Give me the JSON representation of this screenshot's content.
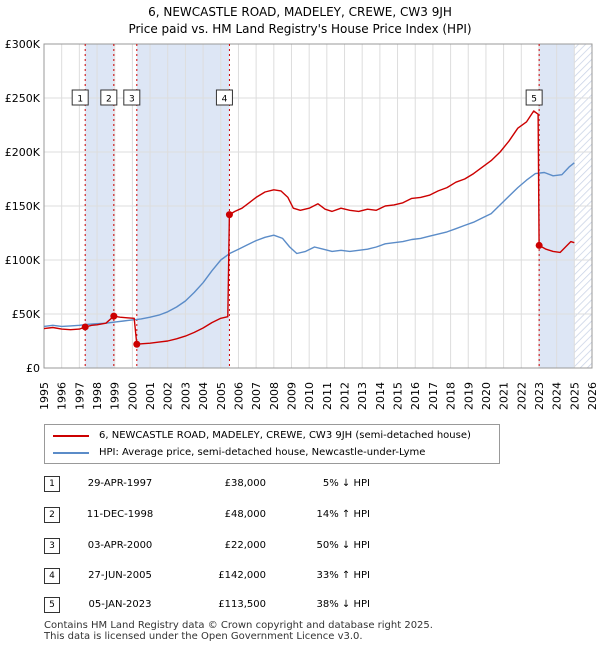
{
  "header": {
    "title": "6, NEWCASTLE ROAD, MADELEY, CREWE, CW3 9JH",
    "subtitle": "Price paid vs. HM Land Registry's House Price Index (HPI)"
  },
  "colors": {
    "price_line": "#cc0000",
    "hpi_line": "#5b8cc8",
    "shade": "#dde6f5",
    "grid": "#dddddd",
    "marker_vline": "#cc0000"
  },
  "legend": {
    "price_label": "6, NEWCASTLE ROAD, MADELEY, CREWE, CW3 9JH (semi-detached house)",
    "hpi_label": "HPI: Average price, semi-detached house, Newcastle-under-Lyme"
  },
  "transactions": [
    {
      "num": "1",
      "date": "29-APR-1997",
      "price": "£38,000",
      "hpi": "5% ↓ HPI"
    },
    {
      "num": "2",
      "date": "11-DEC-1998",
      "price": "£48,000",
      "hpi": "14% ↑ HPI"
    },
    {
      "num": "3",
      "date": "03-APR-2000",
      "price": "£22,000",
      "hpi": "50% ↓ HPI"
    },
    {
      "num": "4",
      "date": "27-JUN-2005",
      "price": "£142,000",
      "hpi": "33% ↑ HPI"
    },
    {
      "num": "5",
      "date": "05-JAN-2023",
      "price": "£113,500",
      "hpi": "38% ↓ HPI"
    }
  ],
  "footer": {
    "line1": "Contains HM Land Registry data © Crown copyright and database right 2025.",
    "line2": "This data is licensed under the Open Government Licence v3.0."
  },
  "chart_data": {
    "type": "line",
    "title": "6, NEWCASTLE ROAD, MADELEY, CREWE, CW3 9JH",
    "subtitle": "Price paid vs. HM Land Registry's House Price Index (HPI)",
    "xlim": [
      1995,
      2026
    ],
    "ylim": [
      0,
      300000
    ],
    "x_ticks": [
      "1995",
      "1996",
      "1997",
      "1998",
      "1999",
      "2000",
      "2001",
      "2002",
      "2003",
      "2004",
      "2005",
      "2006",
      "2007",
      "2008",
      "2009",
      "2010",
      "2011",
      "2012",
      "2013",
      "2014",
      "2015",
      "2016",
      "2017",
      "2018",
      "2019",
      "2020",
      "2021",
      "2022",
      "2023",
      "2024",
      "2025",
      "2026"
    ],
    "y_ticks": [
      {
        "value": 0,
        "label": "£0"
      },
      {
        "value": 50000,
        "label": "£50K"
      },
      {
        "value": 100000,
        "label": "£100K"
      },
      {
        "value": 150000,
        "label": "£150K"
      },
      {
        "value": 200000,
        "label": "£200K"
      },
      {
        "value": 250000,
        "label": "£250K"
      },
      {
        "value": 300000,
        "label": "£300K"
      }
    ],
    "grid": true,
    "legend_position": "below chart",
    "shaded_ranges": [
      [
        1997.33,
        1998.95
      ],
      [
        2000.25,
        2005.49
      ],
      [
        2023.01,
        2025.0
      ]
    ],
    "hatched_range": [
      2025.0,
      2026.0
    ],
    "markers": [
      {
        "label": "1",
        "x": 1997.33,
        "y": 38000
      },
      {
        "label": "2",
        "x": 1998.95,
        "y": 48000
      },
      {
        "label": "3",
        "x": 2000.25,
        "y": 22000
      },
      {
        "label": "4",
        "x": 2005.49,
        "y": 142000
      },
      {
        "label": "5",
        "x": 2023.01,
        "y": 113500
      }
    ],
    "series": [
      {
        "name": "6, NEWCASTLE ROAD, MADELEY, CREWE, CW3 9JH (semi-detached house)",
        "color": "#cc0000",
        "points": [
          [
            1995.0,
            36500
          ],
          [
            1995.5,
            37500
          ],
          [
            1996.0,
            36000
          ],
          [
            1996.5,
            35500
          ],
          [
            1997.0,
            36000
          ],
          [
            1997.33,
            38000
          ],
          [
            1997.7,
            39500
          ],
          [
            1998.0,
            40000
          ],
          [
            1998.5,
            41500
          ],
          [
            1998.95,
            48000
          ],
          [
            1999.3,
            47000
          ],
          [
            1999.7,
            46500
          ],
          [
            2000.1,
            46000
          ],
          [
            2000.25,
            22000
          ],
          [
            2000.6,
            22500
          ],
          [
            2001.0,
            23000
          ],
          [
            2001.5,
            24000
          ],
          [
            2002.0,
            25000
          ],
          [
            2002.5,
            27000
          ],
          [
            2003.0,
            29500
          ],
          [
            2003.5,
            33000
          ],
          [
            2004.0,
            37000
          ],
          [
            2004.5,
            42000
          ],
          [
            2005.0,
            46000
          ],
          [
            2005.4,
            47500
          ],
          [
            2005.49,
            142000
          ],
          [
            2005.8,
            145000
          ],
          [
            2006.2,
            148000
          ],
          [
            2006.6,
            153000
          ],
          [
            2007.0,
            158000
          ],
          [
            2007.5,
            163000
          ],
          [
            2008.0,
            165000
          ],
          [
            2008.4,
            164000
          ],
          [
            2008.8,
            158000
          ],
          [
            2009.1,
            148000
          ],
          [
            2009.5,
            146000
          ],
          [
            2010.0,
            148000
          ],
          [
            2010.5,
            152000
          ],
          [
            2010.9,
            147000
          ],
          [
            2011.3,
            145000
          ],
          [
            2011.8,
            148000
          ],
          [
            2012.3,
            146000
          ],
          [
            2012.8,
            145000
          ],
          [
            2013.3,
            147000
          ],
          [
            2013.8,
            146000
          ],
          [
            2014.3,
            150000
          ],
          [
            2014.8,
            151000
          ],
          [
            2015.3,
            153000
          ],
          [
            2015.8,
            157000
          ],
          [
            2016.3,
            158000
          ],
          [
            2016.8,
            160000
          ],
          [
            2017.3,
            164000
          ],
          [
            2017.8,
            167000
          ],
          [
            2018.3,
            172000
          ],
          [
            2018.8,
            175000
          ],
          [
            2019.3,
            180000
          ],
          [
            2019.8,
            186000
          ],
          [
            2020.3,
            192000
          ],
          [
            2020.8,
            200000
          ],
          [
            2021.3,
            210000
          ],
          [
            2021.8,
            222000
          ],
          [
            2022.3,
            228000
          ],
          [
            2022.7,
            238000
          ],
          [
            2022.95,
            235000
          ],
          [
            2023.01,
            113500
          ],
          [
            2023.4,
            110000
          ],
          [
            2023.8,
            108000
          ],
          [
            2024.2,
            107000
          ],
          [
            2024.5,
            112000
          ],
          [
            2024.8,
            117000
          ],
          [
            2025.0,
            116000
          ]
        ]
      },
      {
        "name": "HPI: Average price, semi-detached house, Newcastle-under-Lyme",
        "color": "#5b8cc8",
        "points": [
          [
            1995.0,
            38500
          ],
          [
            1995.5,
            39500
          ],
          [
            1996.0,
            38500
          ],
          [
            1996.5,
            39000
          ],
          [
            1997.0,
            39500
          ],
          [
            1997.5,
            40500
          ],
          [
            1998.0,
            41000
          ],
          [
            1998.5,
            41500
          ],
          [
            1999.0,
            42500
          ],
          [
            1999.5,
            43500
          ],
          [
            2000.0,
            44500
          ],
          [
            2000.5,
            45500
          ],
          [
            2001.0,
            47000
          ],
          [
            2001.5,
            49000
          ],
          [
            2002.0,
            52000
          ],
          [
            2002.5,
            56500
          ],
          [
            2003.0,
            62000
          ],
          [
            2003.5,
            70000
          ],
          [
            2004.0,
            79000
          ],
          [
            2004.5,
            90000
          ],
          [
            2005.0,
            100000
          ],
          [
            2005.5,
            106000
          ],
          [
            2006.0,
            110000
          ],
          [
            2006.5,
            114000
          ],
          [
            2007.0,
            118000
          ],
          [
            2007.5,
            121000
          ],
          [
            2008.0,
            123000
          ],
          [
            2008.5,
            120000
          ],
          [
            2008.9,
            112000
          ],
          [
            2009.3,
            106000
          ],
          [
            2009.8,
            108000
          ],
          [
            2010.3,
            112000
          ],
          [
            2010.8,
            110000
          ],
          [
            2011.3,
            108000
          ],
          [
            2011.8,
            109000
          ],
          [
            2012.3,
            108000
          ],
          [
            2012.8,
            109000
          ],
          [
            2013.3,
            110000
          ],
          [
            2013.8,
            112000
          ],
          [
            2014.3,
            115000
          ],
          [
            2014.8,
            116000
          ],
          [
            2015.3,
            117000
          ],
          [
            2015.8,
            119000
          ],
          [
            2016.3,
            120000
          ],
          [
            2016.8,
            122000
          ],
          [
            2017.3,
            124000
          ],
          [
            2017.8,
            126000
          ],
          [
            2018.3,
            129000
          ],
          [
            2018.8,
            132000
          ],
          [
            2019.3,
            135000
          ],
          [
            2019.8,
            139000
          ],
          [
            2020.3,
            143000
          ],
          [
            2020.8,
            151000
          ],
          [
            2021.3,
            159000
          ],
          [
            2021.8,
            167000
          ],
          [
            2022.3,
            174000
          ],
          [
            2022.8,
            180000
          ],
          [
            2023.3,
            181000
          ],
          [
            2023.8,
            178000
          ],
          [
            2024.3,
            179000
          ],
          [
            2024.7,
            186000
          ],
          [
            2025.0,
            190000
          ]
        ]
      }
    ]
  }
}
